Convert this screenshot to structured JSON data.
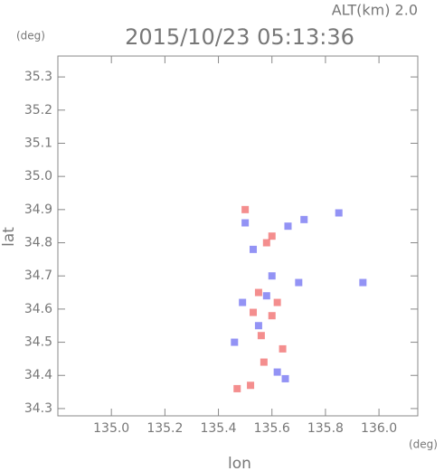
{
  "chart_data": {
    "type": "scatter",
    "title": "2015/10/23 05:13:36",
    "subtitle": "ALT(km) 2.0",
    "x_label": "lon",
    "y_label": "lat",
    "x_unit": "(deg)",
    "y_unit": "(deg)",
    "xlim": [
      134.8,
      136.145
    ],
    "ylim": [
      34.278,
      35.363
    ],
    "xticks": [
      {
        "value": 135.0,
        "label": "135.0"
      },
      135.2,
      135.4,
      135.6,
      135.8,
      {
        "value": 136.0,
        "label": "136.0"
      }
    ],
    "yticks": [
      34.3,
      34.4,
      34.5,
      34.6,
      34.7,
      34.8,
      34.9,
      {
        "value": 35.0,
        "label": "35.0"
      },
      35.1,
      35.2,
      35.3
    ],
    "series": [
      {
        "color": "#f06868",
        "x": [
          135.47,
          135.52,
          135.57,
          135.6,
          135.62,
          135.55,
          135.58,
          135.6,
          135.5,
          135.53,
          135.64,
          135.56
        ],
        "y": [
          34.36,
          34.37,
          34.44,
          34.58,
          34.62,
          34.65,
          34.8,
          34.82,
          34.9,
          34.59,
          34.48,
          34.52
        ]
      },
      {
        "color": "#6f6ff2",
        "x": [
          135.5,
          135.53,
          135.66,
          135.72,
          135.85,
          135.6,
          135.55,
          135.62,
          135.7,
          135.49,
          135.94,
          135.46,
          135.65,
          135.58
        ],
        "y": [
          34.86,
          34.78,
          34.85,
          34.87,
          34.89,
          34.7,
          34.55,
          34.41,
          34.68,
          34.62,
          34.68,
          34.5,
          34.39,
          34.64
        ]
      }
    ]
  }
}
